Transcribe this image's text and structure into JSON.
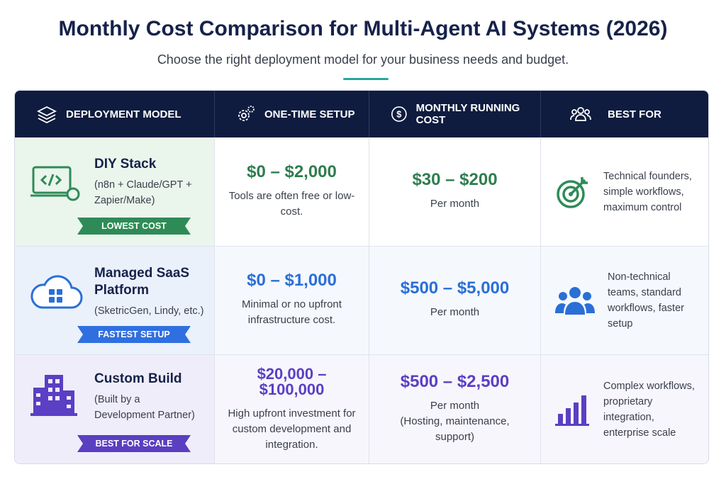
{
  "header": {
    "title": "Monthly Cost Comparison for Multi-Agent AI Systems (2026)",
    "subtitle": "Choose the right deployment model for your business needs and budget."
  },
  "table": {
    "columns": [
      "DEPLOYMENT MODEL",
      "ONE-TIME SETUP",
      "MONTHLY RUNNING COST",
      "BEST FOR"
    ],
    "rows": [
      {
        "name": "DIY Stack",
        "detail": "(n8n + Claude/GPT + Zapier/Make)",
        "badge": "LOWEST COST",
        "setup_cost": "$0 – $2,000",
        "setup_note": "Tools are often free or low-cost.",
        "monthly_cost": "$30 – $200",
        "monthly_note": "Per month",
        "best_for": "Technical founders, simple workflows, maximum control"
      },
      {
        "name": "Managed SaaS Platform",
        "detail": "(SketricGen, Lindy, etc.)",
        "badge": "FASTEST SETUP",
        "setup_cost": "$0 – $1,000",
        "setup_note": "Minimal or no upfront infrastructure cost.",
        "monthly_cost": "$500 – $5,000",
        "monthly_note": "Per month",
        "best_for": "Non-technical teams, standard workflows, faster setup"
      },
      {
        "name": "Custom Build",
        "detail": "(Built by a Development Partner)",
        "badge": "BEST FOR SCALE",
        "setup_cost": "$20,000 – $100,000",
        "setup_note": "High upfront investment for custom development and integration.",
        "monthly_cost": "$500 – $2,500",
        "monthly_note": "Per month",
        "monthly_extra": "(Hosting, maintenance, support)",
        "best_for": "Complex workflows, proprietary integration, enterprise scale"
      }
    ]
  }
}
